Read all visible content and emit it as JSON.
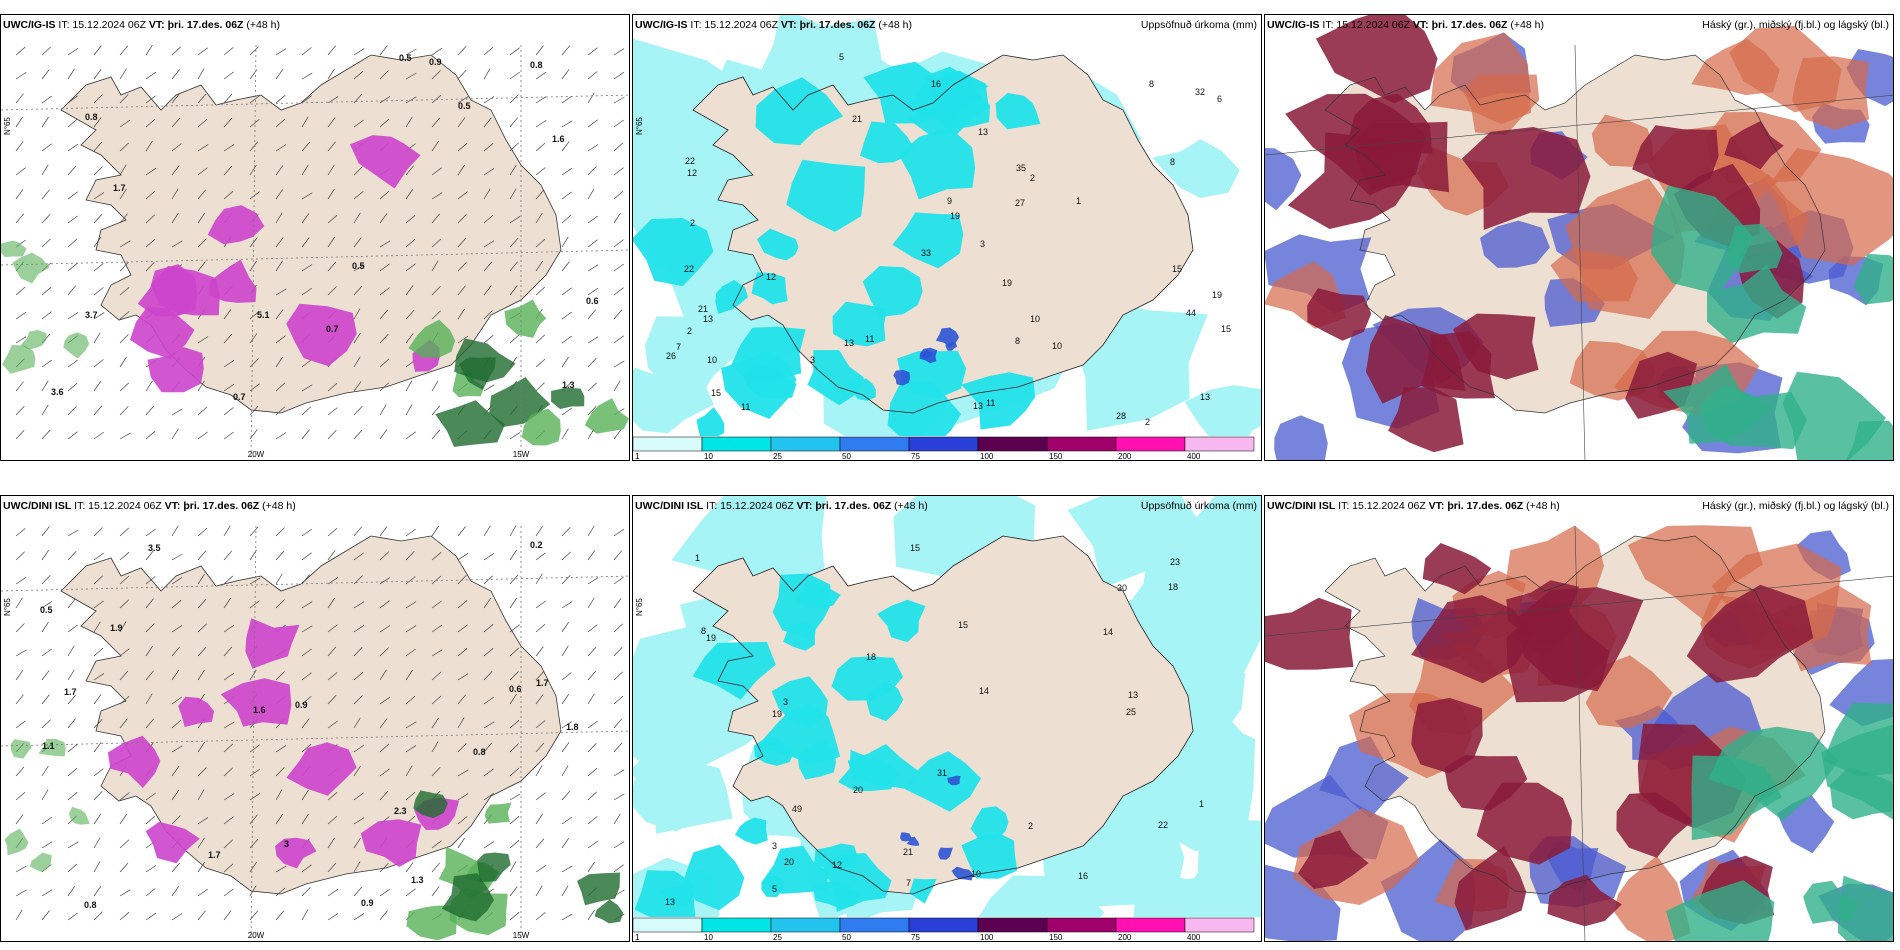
{
  "panels": [
    {
      "model": "UWC/IG-IS",
      "it": "IT: 15.12.2024 06Z",
      "vt_label": "VT:",
      "vt": "þri. 17.des. 06Z",
      "lead": "(+48 h)",
      "right": "",
      "kind": "wind",
      "labels": [
        "0.6",
        "0.5",
        "0.8",
        "0.5",
        "0.7",
        "3.7",
        "3.6",
        "1.3",
        "5.1",
        "0.9",
        "0.7",
        "1.7",
        "1.6",
        "0.8",
        "0.5"
      ],
      "axis": [
        "N°65",
        "20W",
        "15W"
      ]
    },
    {
      "model": "UWC/IG-IS",
      "it": "IT: 15.12.2024 06Z",
      "vt_label": "VT:",
      "vt": "þri. 17.des. 06Z",
      "lead": "(+48 h)",
      "right": "Uppsöfnuð úrkoma (mm)",
      "kind": "precip",
      "labels": [
        "2",
        "32",
        "26",
        "16",
        "19",
        "11",
        "8",
        "10",
        "3",
        "10",
        "13",
        "12",
        "21",
        "19",
        "22",
        "33",
        "15",
        "11",
        "12",
        "13",
        "15",
        "13",
        "21",
        "35",
        "44",
        "22",
        "28",
        "27",
        "9",
        "8",
        "19",
        "10",
        "11",
        "13",
        "15",
        "13",
        "6",
        "2",
        "2",
        "5",
        "1",
        "3",
        "8",
        "2",
        "7"
      ],
      "axis": [
        "N°65"
      ]
    },
    {
      "model": "UWC/IG-IS",
      "it": "IT: 15.12.2024 06Z",
      "vt_label": "VT:",
      "vt": "þri. 17.des. 06Z",
      "lead": "(+48 h)",
      "right": "Háský (gr.), miðský (fj.bl.) og lágský (bl.)",
      "kind": "cloud",
      "labels": [],
      "axis": []
    },
    {
      "model": "UWC/DINI ISL",
      "it": "IT: 15.12.2024 06Z",
      "vt_label": "VT:",
      "vt": "þri. 17.des. 06Z",
      "lead": "(+48 h)",
      "right": "",
      "kind": "wind",
      "labels": [
        "3",
        "1.7",
        "1.1",
        "2.3",
        "1.9",
        "1.6",
        "1.7",
        "1.8",
        "3.5",
        "0.5",
        "0.8",
        "0.8",
        "0.6",
        "0.2",
        "0.9",
        "1.7",
        "1.3",
        "0.9"
      ],
      "axis": [
        "N°65",
        "20W",
        "15W"
      ]
    },
    {
      "model": "UWC/DINI ISL",
      "it": "IT: 15.12.2024 06Z",
      "vt_label": "VT:",
      "vt": "þri. 17.des. 06Z",
      "lead": "(+48 h)",
      "right": "Uppsöfnuð úrkoma (mm)",
      "kind": "precip",
      "labels": [
        "8",
        "1",
        "30",
        "14",
        "20",
        "13",
        "25",
        "31",
        "19",
        "15",
        "16",
        "18",
        "20",
        "21",
        "19",
        "49",
        "22",
        "23",
        "18",
        "15",
        "13",
        "14",
        "7",
        "12",
        "10",
        "3",
        "2",
        "5",
        "1",
        "3"
      ],
      "axis": [
        "N°65"
      ]
    },
    {
      "model": "UWC/DINI ISL",
      "it": "IT: 15.12.2024 06Z",
      "vt_label": "VT:",
      "vt": "þri. 17.des. 06Z",
      "lead": "(+48 h)",
      "right": "Háský (gr.), miðský (fj.bl.) og lágský (bl.)",
      "kind": "cloud",
      "labels": [],
      "axis": []
    }
  ],
  "colorbar": {
    "ticks": [
      "1",
      "10",
      "25",
      "50",
      "75",
      "100",
      "150",
      "200",
      "400"
    ],
    "colors": [
      "#d8fbfb",
      "#00e6e6",
      "#22c4ee",
      "#2f7cf0",
      "#2a3fd8",
      "#5c0050",
      "#a0006a",
      "#ff10b0",
      "#f7b8f0"
    ]
  },
  "colors": {
    "land": "#ede0d2",
    "precip_light": "#a6f4f6",
    "precip_mid": "#22e2ea",
    "precip_blue": "#2b54d4",
    "pink": "#cc44cc",
    "green": "#58b058",
    "darkgreen": "#1f6b2f",
    "cloud_high": "#8a1a3a",
    "cloud_mid": "#d66a4a",
    "cloud_low": "#4a5bd0",
    "cloud_teal": "#2fb08a"
  }
}
